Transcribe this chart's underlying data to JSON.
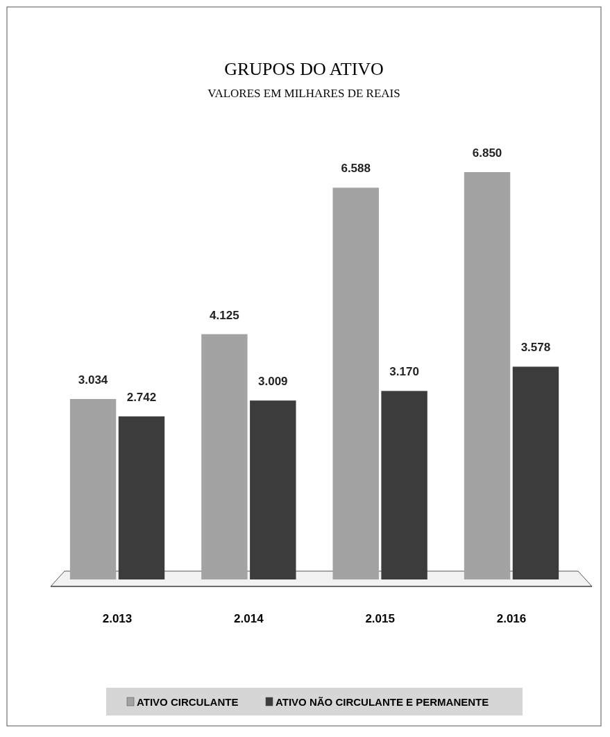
{
  "chart_data": {
    "type": "bar",
    "title": "GRUPOS DO ATIVO",
    "subtitle": "VALORES EM MILHARES DE REAIS",
    "categories": [
      "2.013",
      "2.014",
      "2.015",
      "2.016"
    ],
    "series": [
      {
        "name": "ATIVO CIRCULANTE",
        "color": "#a3a3a3",
        "values": [
          3034,
          4125,
          6588,
          6850
        ],
        "value_labels": [
          "3.034",
          "4.125",
          "6.588",
          "6.850"
        ]
      },
      {
        "name": "ATIVO NÃO CIRCULANTE E PERMANENTE",
        "color": "#3c3c3c",
        "values": [
          2742,
          3009,
          3170,
          3578
        ],
        "value_labels": [
          "2.742",
          "3.009",
          "3.170",
          "3.578"
        ]
      }
    ],
    "legend": "bottom",
    "grid": false
  }
}
